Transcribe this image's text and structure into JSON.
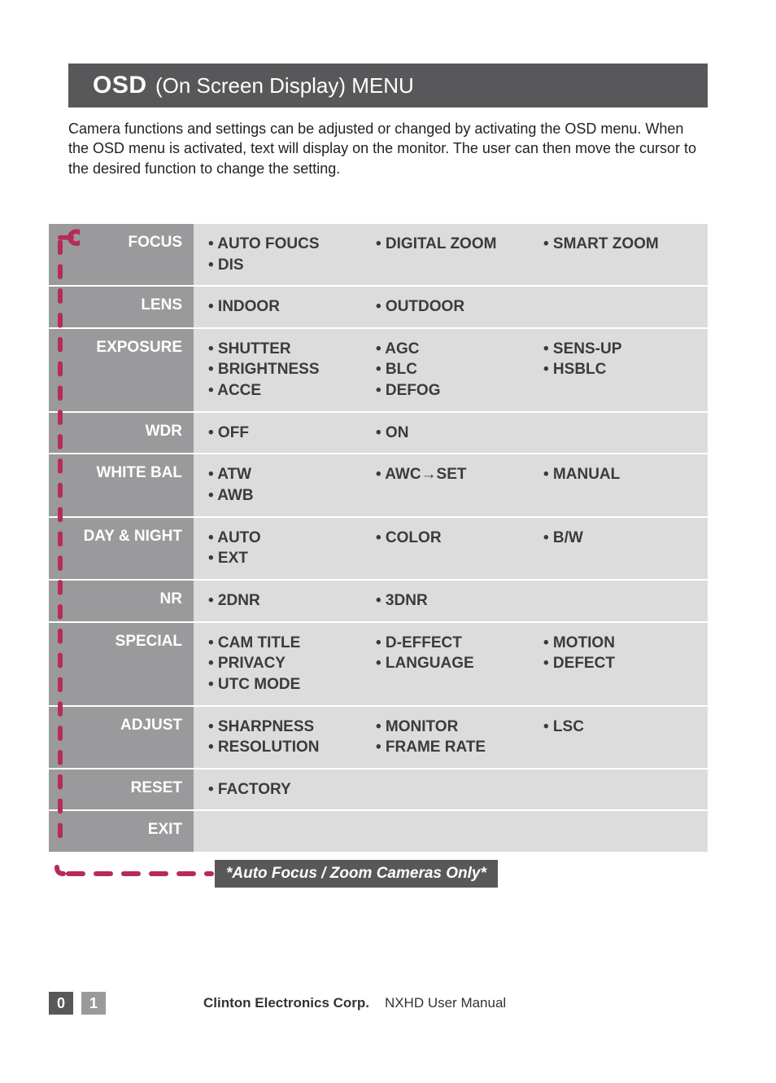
{
  "colors": {
    "header_bg": "#58585a",
    "row_label_bg": "#9a9a9c",
    "row_opts_bg": "#dcdcdd",
    "opts_text": "#3b3b3d",
    "footer_pill_bg": "#58585a",
    "bracket": "#b52b5a"
  },
  "header": {
    "osd": "OSD",
    "rest": "(On Screen Display) MENU"
  },
  "intro": "Camera functions and settings can be adjusted or changed by activating the OSD menu.  When the OSD menu is activated, text will display on the monitor.  The user can then move the cursor to the desired function to change the setting.",
  "rows": [
    {
      "label": "FOCUS",
      "cols": [
        [
          "AUTO FOUCS",
          "DIS"
        ],
        [
          "DIGITAL ZOOM"
        ],
        [
          "SMART ZOOM"
        ]
      ]
    },
    {
      "label": "LENS",
      "cols": [
        [
          "INDOOR"
        ],
        [
          "OUTDOOR"
        ],
        []
      ]
    },
    {
      "label": "EXPOSURE",
      "cols": [
        [
          "SHUTTER",
          "BRIGHTNESS",
          "ACCE"
        ],
        [
          "AGC",
          "BLC",
          "DEFOG"
        ],
        [
          "SENS-UP",
          "HSBLC"
        ]
      ]
    },
    {
      "label": "WDR",
      "cols": [
        [
          "OFF"
        ],
        [
          "ON"
        ],
        []
      ]
    },
    {
      "label": "WHITE BAL",
      "cols": [
        [
          "ATW",
          "AWB"
        ],
        [
          "AWC→SET"
        ],
        [
          "MANUAL"
        ]
      ]
    },
    {
      "label": "DAY & NIGHT",
      "cols": [
        [
          "AUTO",
          "EXT"
        ],
        [
          "COLOR"
        ],
        [
          "B/W"
        ]
      ]
    },
    {
      "label": "NR",
      "cols": [
        [
          "2DNR"
        ],
        [
          "3DNR"
        ],
        []
      ]
    },
    {
      "label": "SPECIAL",
      "cols": [
        [
          "CAM TITLE",
          "PRIVACY",
          "UTC MODE"
        ],
        [
          "D-EFFECT",
          "LANGUAGE"
        ],
        [
          "MOTION",
          "DEFECT"
        ]
      ]
    },
    {
      "label": "ADJUST",
      "cols": [
        [
          "SHARPNESS",
          "RESOLUTION"
        ],
        [
          "MONITOR",
          "FRAME RATE"
        ],
        [
          "LSC"
        ]
      ]
    },
    {
      "label": "RESET",
      "cols": [
        [
          "FACTORY"
        ],
        [],
        []
      ]
    },
    {
      "label": "EXIT",
      "cols": [
        [],
        [],
        []
      ]
    }
  ],
  "footnote": "*Auto Focus / Zoom Cameras Only*",
  "footer": {
    "page_left": "0",
    "page_right": "1",
    "company": "Clinton Electronics Corp.",
    "doc": "NXHD User Manual"
  }
}
